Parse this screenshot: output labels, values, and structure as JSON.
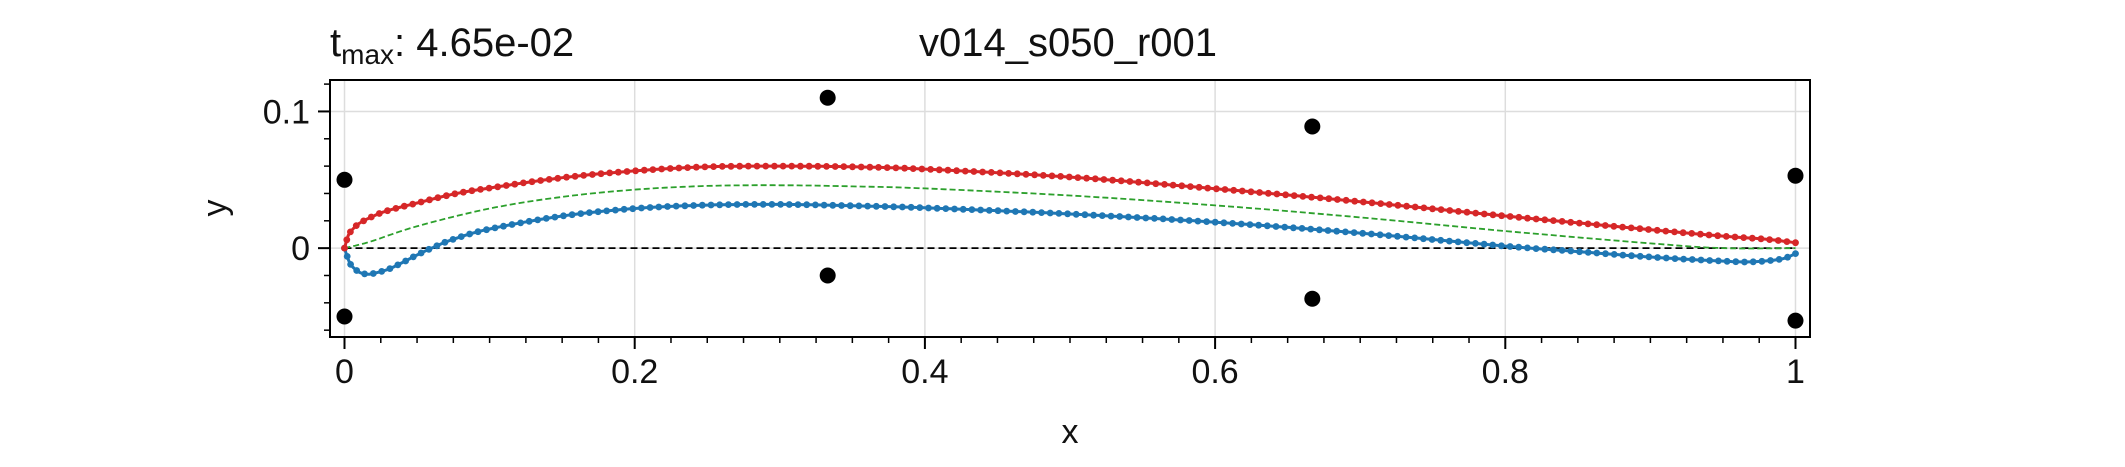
{
  "chart_data": {
    "type": "line",
    "title_left": {
      "main": "t",
      "sub": "max",
      "rest": ": 4.65e-02"
    },
    "title_center": "v014_s050_r001",
    "xlabel": "x",
    "ylabel": "y",
    "xlim": [
      -0.01,
      1.01
    ],
    "ylim": [
      -0.065,
      0.123
    ],
    "xticks": [
      {
        "value": 0,
        "label": "0"
      },
      {
        "value": 0.2,
        "label": "0.2"
      },
      {
        "value": 0.4,
        "label": "0.4"
      },
      {
        "value": 0.6,
        "label": "0.6"
      },
      {
        "value": 0.8,
        "label": "0.8"
      },
      {
        "value": 1,
        "label": "1"
      }
    ],
    "yticks": [
      {
        "value": 0,
        "label": "0"
      },
      {
        "value": 0.1,
        "label": "0.1"
      }
    ],
    "grid": true,
    "colors": {
      "upper": "#d62728",
      "lower": "#1f77b4",
      "camber": "#2ca02c",
      "chord": "#000000",
      "control": "#000000"
    },
    "upper_surface": {
      "x": [
        0,
        0.0025,
        0.005,
        0.01,
        0.02,
        0.03,
        0.05,
        0.075,
        0.1,
        0.15,
        0.2,
        0.25,
        0.3,
        0.35,
        0.4,
        0.5,
        0.6,
        0.7,
        0.8,
        0.9,
        0.95,
        0.98,
        1.0
      ],
      "y": [
        0,
        0.009,
        0.013,
        0.018,
        0.0235,
        0.0275,
        0.033,
        0.0395,
        0.044,
        0.0515,
        0.0565,
        0.0595,
        0.06,
        0.0595,
        0.0578,
        0.052,
        0.0435,
        0.034,
        0.0235,
        0.0135,
        0.0088,
        0.0065,
        0.004
      ]
    },
    "lower_surface": {
      "x": [
        0,
        0.0025,
        0.005,
        0.01,
        0.015,
        0.02,
        0.03,
        0.04,
        0.05,
        0.06,
        0.075,
        0.1,
        0.15,
        0.2,
        0.25,
        0.3,
        0.35,
        0.4,
        0.5,
        0.6,
        0.7,
        0.8,
        0.85,
        0.9,
        0.95,
        0.97,
        0.99,
        1.0
      ],
      "y": [
        0,
        -0.008,
        -0.013,
        -0.0175,
        -0.019,
        -0.0185,
        -0.0155,
        -0.0105,
        -0.005,
        0.0,
        0.0065,
        0.014,
        0.0235,
        0.029,
        0.0315,
        0.032,
        0.031,
        0.0295,
        0.025,
        0.019,
        0.011,
        0.0015,
        -0.0025,
        -0.0065,
        -0.0095,
        -0.01,
        -0.008,
        -0.004
      ]
    },
    "camber_line": {
      "x": [
        0,
        0.01,
        0.02,
        0.05,
        0.1,
        0.15,
        0.2,
        0.25,
        0.3,
        0.35,
        0.4,
        0.5,
        0.6,
        0.7,
        0.8,
        0.9,
        0.95,
        1.0
      ],
      "y": [
        0,
        0.0025,
        0.0055,
        0.016,
        0.029,
        0.0375,
        0.0428,
        0.0455,
        0.046,
        0.0452,
        0.0437,
        0.0385,
        0.0313,
        0.0225,
        0.0125,
        0.0035,
        0.0,
        0.0
      ]
    },
    "chord_line": {
      "x": [
        0,
        1.0
      ],
      "y": [
        0,
        0
      ]
    },
    "control_points": {
      "x": [
        0,
        0,
        0.333,
        0.333,
        0.667,
        0.667,
        1.0,
        1.0
      ],
      "y": [
        0.05,
        -0.05,
        0.11,
        -0.02,
        0.089,
        -0.037,
        0.053,
        -0.053
      ]
    }
  }
}
